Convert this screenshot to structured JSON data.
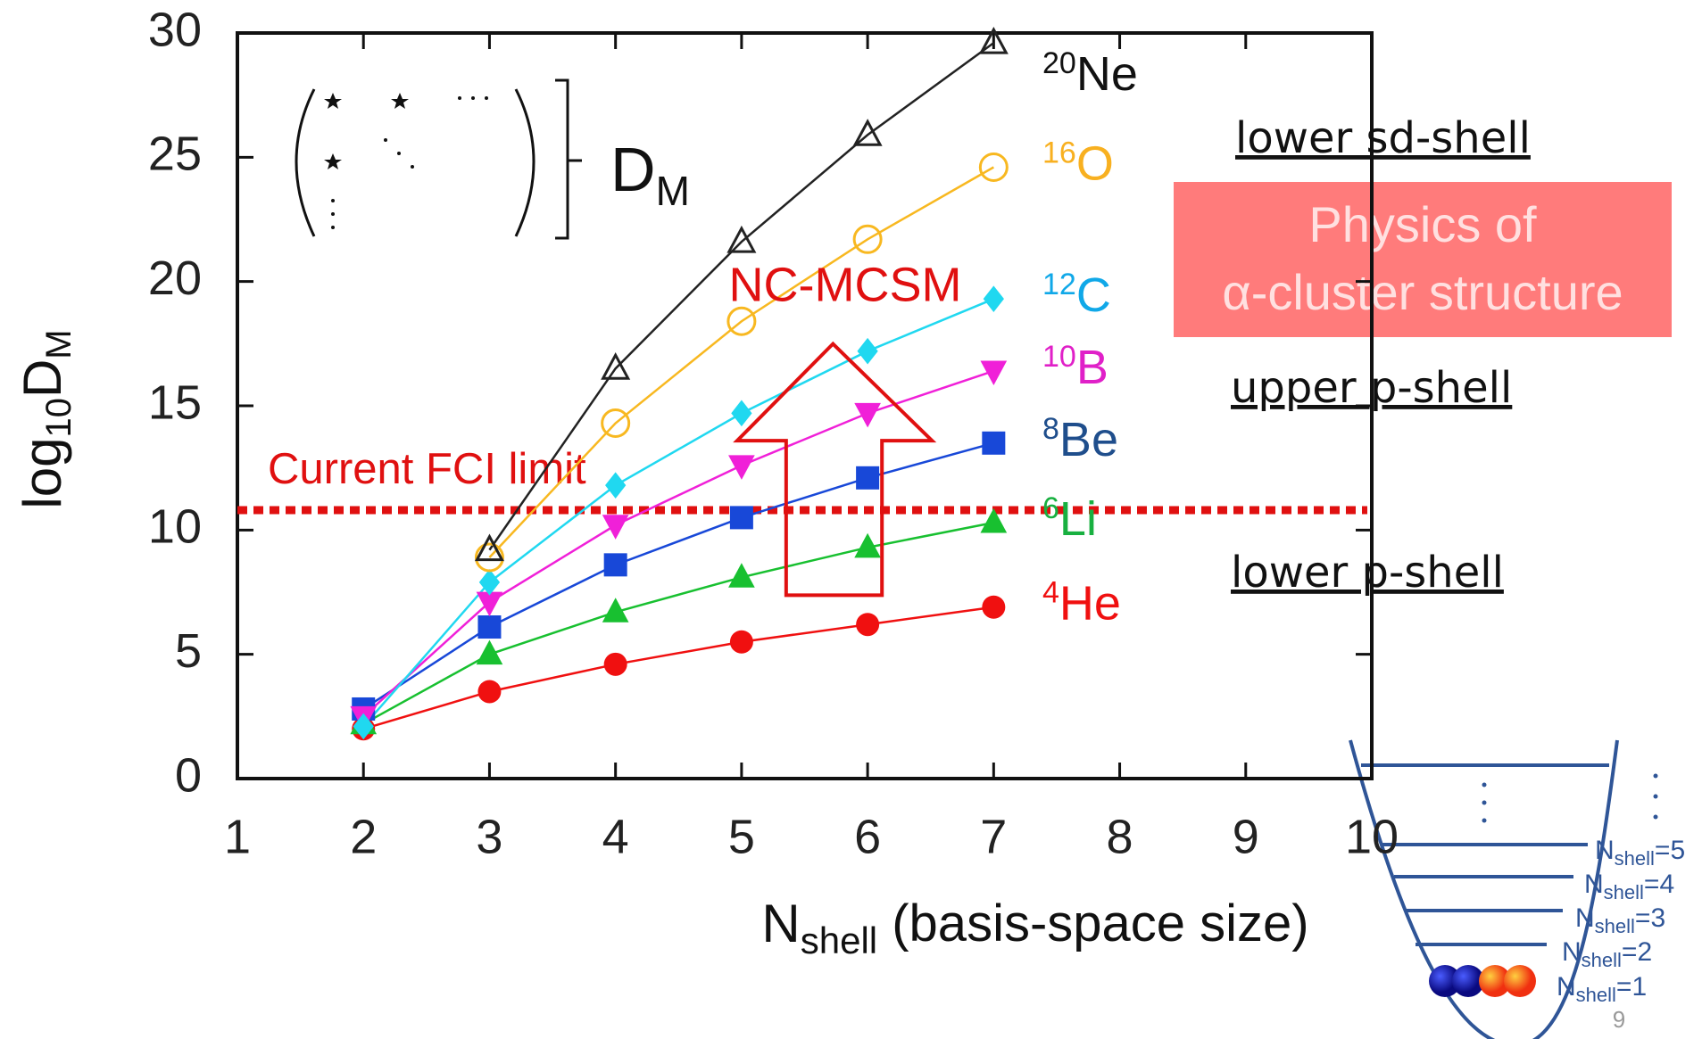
{
  "chart_data": {
    "type": "line",
    "x": [
      2,
      3,
      4,
      5,
      6,
      7
    ],
    "xlim": [
      1,
      10
    ],
    "xticks": [
      1,
      2,
      3,
      4,
      5,
      6,
      7,
      8,
      9,
      10
    ],
    "ylim": [
      0,
      30
    ],
    "yticks": [
      0,
      5,
      10,
      15,
      20,
      25,
      30
    ],
    "xlabel_parts": [
      "N",
      "shell",
      " (basis-space size)"
    ],
    "ylabel_parts": [
      "log",
      "10",
      "D",
      "M"
    ],
    "series": [
      {
        "mass": "4",
        "name": "He",
        "color": "#f01010",
        "marker": "circle",
        "values": [
          2.0,
          3.5,
          4.6,
          5.5,
          6.2,
          6.9
        ]
      },
      {
        "mass": "6",
        "name": "Li",
        "color": "#18c030",
        "marker": "triangle-up",
        "values": [
          2.2,
          5.0,
          6.7,
          8.1,
          9.3,
          10.3
        ]
      },
      {
        "mass": "8",
        "name": "Be",
        "color": "#1848d8",
        "marker": "square",
        "values": [
          2.8,
          6.1,
          8.6,
          10.5,
          12.1,
          13.5
        ]
      },
      {
        "mass": "10",
        "name": "B",
        "color": "#f020d8",
        "marker": "triangle-down",
        "values": [
          2.5,
          7.1,
          10.2,
          12.6,
          14.7,
          16.4
        ]
      },
      {
        "mass": "12",
        "name": "C",
        "color": "#20d8f0",
        "marker": "diamond",
        "values": [
          2.1,
          7.9,
          11.8,
          14.7,
          17.2,
          19.3
        ]
      },
      {
        "mass": "16",
        "name": "O",
        "color": "#f8b820",
        "marker": "open-circle",
        "values": [
          null,
          8.9,
          14.3,
          18.4,
          21.7,
          24.6
        ]
      },
      {
        "mass": "20",
        "name": "Ne",
        "color": "#222222",
        "marker": "open-triangle",
        "values": [
          null,
          9.2,
          16.5,
          21.6,
          25.9,
          29.6
        ]
      }
    ],
    "label_colors": {
      "He": "#f01010",
      "Li": "#18b040",
      "Be": "#1f4e8c",
      "B": "#e020c8",
      "C": "#10a8e8",
      "O": "#f8b020",
      "Ne": "#111111"
    },
    "limit": {
      "label": "Current FCI limit",
      "value": 10.8,
      "color": "#e01010"
    },
    "annotation": "NC-MCSM"
  },
  "inset": {
    "label_parts": [
      "D",
      "M"
    ]
  },
  "regions": [
    "lower sd-shell",
    "upper p-shell",
    "lower p-shell"
  ],
  "highlight": [
    "Physics of",
    "α-cluster structure"
  ],
  "shell_diagram": {
    "labels": [
      {
        "main": "N",
        "sub": "shell",
        "eq": "=5"
      },
      {
        "main": "N",
        "sub": "shell",
        "eq": "=4"
      },
      {
        "main": "N",
        "sub": "shell",
        "eq": "=3"
      },
      {
        "main": "N",
        "sub": "shell",
        "eq": "=2"
      },
      {
        "main": "N",
        "sub": "shell",
        "eq": "=1"
      }
    ]
  },
  "page_number": "9"
}
